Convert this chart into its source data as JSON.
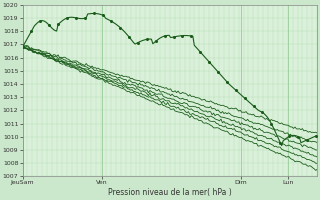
{
  "xlabel": "Pression niveau de la mer( hPa )",
  "ylim": [
    1007,
    1020
  ],
  "yticks": [
    1007,
    1008,
    1009,
    1010,
    1011,
    1012,
    1013,
    1014,
    1015,
    1016,
    1017,
    1018,
    1019,
    1020
  ],
  "xtick_labels": [
    "JeuSam",
    "Ven",
    "Dim",
    "Lun"
  ],
  "xtick_positions": [
    0.0,
    0.27,
    0.74,
    0.9
  ],
  "bg_color": "#cce8cc",
  "plot_bg_color": "#daf0da",
  "line_color": "#1a5c1a",
  "grid_color_major": "#99cc99",
  "grid_color_minor": "#b8ddb8",
  "num_lines": 7,
  "figsize": [
    3.2,
    2.0
  ],
  "dpi": 100
}
